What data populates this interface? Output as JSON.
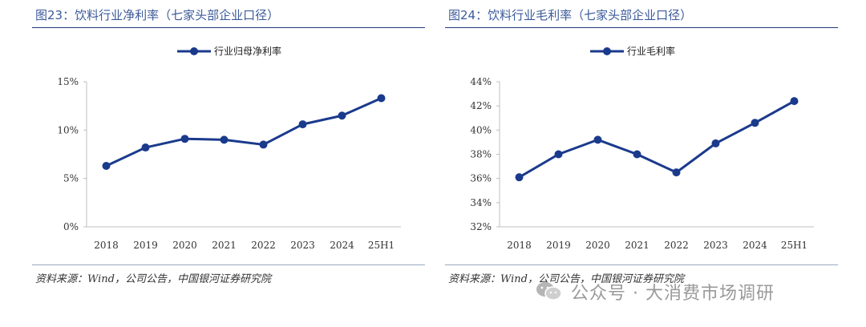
{
  "left": {
    "title": "图23：饮料行业净利率（七家头部企业口径）",
    "source": "资料来源：Wind，公司公告，中国银河证券研究院"
  },
  "right": {
    "title": "图24：饮料行业毛利率（七家头部企业口径）",
    "source": "资料来源：Wind，公司公告，中国银河证券研究院"
  },
  "watermark": "公众号 · 大消费市场调研",
  "colors": {
    "series": "#1a3a8c",
    "axis": "#bfbfbf",
    "title": "#3b5a9a"
  },
  "chart_data": [
    {
      "type": "line",
      "title": "",
      "categories": [
        "2018",
        "2019",
        "2020",
        "2021",
        "2022",
        "2023",
        "2024",
        "25H1"
      ],
      "series": [
        {
          "name": "行业归母净利率",
          "values": [
            6.3,
            8.2,
            9.1,
            9.0,
            8.5,
            10.6,
            11.5,
            13.3
          ]
        }
      ],
      "ylim": [
        0,
        15
      ],
      "yticks": [
        0,
        5,
        10,
        15
      ],
      "ytick_labels": [
        "0%",
        "5%",
        "10%",
        "15%"
      ],
      "legend": "top-center",
      "grid": false
    },
    {
      "type": "line",
      "title": "",
      "categories": [
        "2018",
        "2019",
        "2020",
        "2021",
        "2022",
        "2023",
        "2024",
        "25H1"
      ],
      "series": [
        {
          "name": "行业毛利率",
          "values": [
            36.1,
            38.0,
            39.2,
            38.0,
            36.5,
            38.9,
            40.6,
            42.4
          ]
        }
      ],
      "ylim": [
        32,
        44
      ],
      "yticks": [
        32,
        34,
        36,
        38,
        40,
        42,
        44
      ],
      "ytick_labels": [
        "32%",
        "34%",
        "36%",
        "38%",
        "40%",
        "42%",
        "44%"
      ],
      "legend": "top-center",
      "grid": false
    }
  ]
}
